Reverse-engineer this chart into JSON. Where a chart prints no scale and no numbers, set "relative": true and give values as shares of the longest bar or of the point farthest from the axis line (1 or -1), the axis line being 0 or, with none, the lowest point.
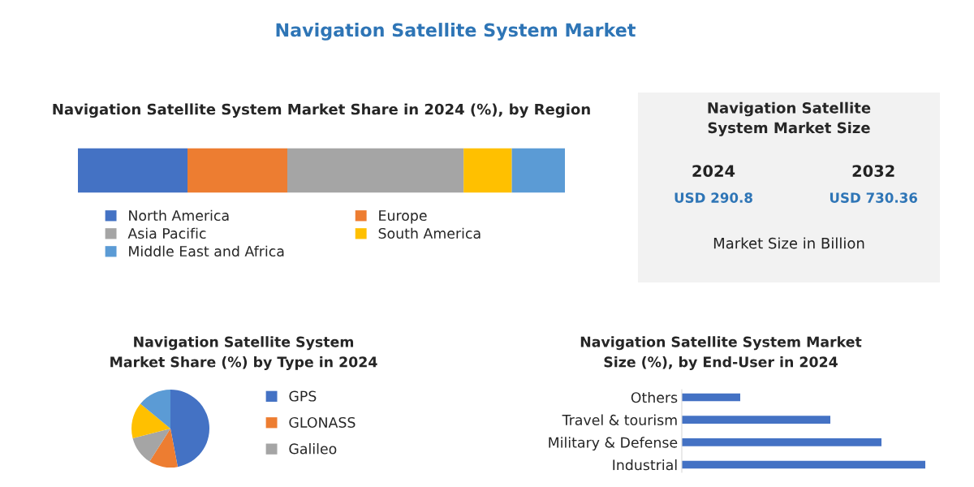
{
  "chart_data": [
    {
      "type": "bar",
      "title": "Navigation Satellite System Market",
      "subtitle": "Navigation Satellite System Market Share in 2024 (%), by Region",
      "orientation": "horizontal",
      "stacked": true,
      "relative": true,
      "categories": [
        null
      ],
      "legend": "bottom",
      "series": [
        {
          "name": "North America",
          "color": "#4472c4",
          "values": [
            0.225
          ]
        },
        {
          "name": "Europe",
          "color": "#ed7d31",
          "values": [
            0.205
          ]
        },
        {
          "name": "Asia Pacific",
          "color": "#a5a5a5",
          "values": [
            0.362
          ]
        },
        {
          "name": "South America",
          "color": "#ffc000",
          "values": [
            0.099
          ]
        },
        {
          "name": "Middle East and Africa",
          "color": "#5b9bd5",
          "values": [
            0.109
          ]
        }
      ]
    },
    {
      "type": "other",
      "title": "Navigation Satellite System Market Size",
      "annotations": [
        "2024",
        "2032",
        "USD 290.8",
        "USD 730.36",
        "Market Size in Billion"
      ]
    },
    {
      "type": "pie",
      "title": "Navigation Satellite System Market Share (%) by Type in 2024",
      "categories": [
        "GPS",
        "GLONASS",
        "Galileo",
        null,
        null
      ],
      "values": [
        47,
        12,
        12,
        15,
        14
      ],
      "colors": [
        "#4472c4",
        "#ed7d31",
        "#a5a5a5",
        "#ffc000",
        "#5b9bd5"
      ],
      "legend": "right"
    },
    {
      "type": "bar",
      "title": "Navigation Satellite System Market Size (%), by End-User in 2024",
      "orientation": "horizontal",
      "relative": true,
      "categories": [
        "Others",
        "Travel & tourism",
        "Military & Defense",
        "Industrial"
      ],
      "values": [
        0.24,
        0.61,
        0.82,
        1
      ],
      "color": "#4472c4"
    }
  ]
}
